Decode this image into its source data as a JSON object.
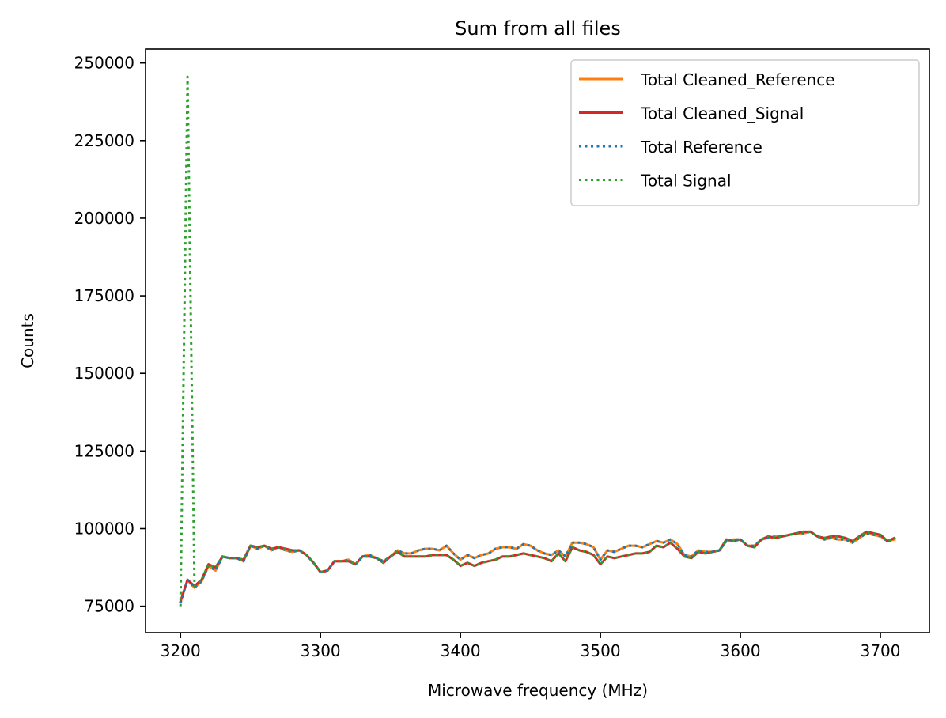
{
  "chart_data": {
    "type": "line",
    "title": "Sum from all files",
    "xlabel": "Microwave frequency (MHz)",
    "ylabel": "Counts",
    "xlim": [
      3175,
      3735
    ],
    "ylim": [
      66500,
      254500
    ],
    "xticks": [
      3200,
      3300,
      3400,
      3500,
      3600,
      3700
    ],
    "yticks": [
      75000,
      100000,
      125000,
      150000,
      175000,
      200000,
      225000,
      250000
    ],
    "grid": false,
    "legend_position": "top-right",
    "x": [
      3200,
      3205,
      3210,
      3215,
      3220,
      3225,
      3230,
      3235,
      3240,
      3245,
      3250,
      3255,
      3260,
      3265,
      3270,
      3275,
      3280,
      3285,
      3290,
      3295,
      3300,
      3305,
      3310,
      3315,
      3320,
      3325,
      3330,
      3335,
      3340,
      3345,
      3350,
      3355,
      3360,
      3365,
      3370,
      3375,
      3380,
      3385,
      3390,
      3395,
      3400,
      3405,
      3410,
      3415,
      3420,
      3425,
      3430,
      3435,
      3440,
      3445,
      3450,
      3455,
      3460,
      3465,
      3470,
      3475,
      3480,
      3485,
      3490,
      3495,
      3500,
      3505,
      3510,
      3515,
      3520,
      3525,
      3530,
      3535,
      3540,
      3545,
      3550,
      3555,
      3560,
      3565,
      3570,
      3575,
      3580,
      3585,
      3590,
      3595,
      3600,
      3605,
      3610,
      3615,
      3620,
      3625,
      3630,
      3635,
      3640,
      3645,
      3650,
      3655,
      3660,
      3665,
      3670,
      3675,
      3680,
      3685,
      3690,
      3695,
      3700,
      3705,
      3710
    ],
    "series": [
      {
        "name": "Total Cleaned_Reference",
        "color": "#ff7f0e",
        "style": "solid",
        "values": [
          76500,
          83500,
          81000,
          83000,
          88000,
          86500,
          91000,
          90500,
          90500,
          89500,
          94500,
          93500,
          94500,
          93000,
          94000,
          93000,
          92500,
          93000,
          91500,
          89000,
          86000,
          86500,
          89500,
          89500,
          90000,
          88500,
          91000,
          91500,
          90500,
          89500,
          91000,
          93000,
          92000,
          92000,
          93000,
          93500,
          93500,
          93000,
          94500,
          92000,
          90000,
          91500,
          90500,
          91500,
          92000,
          93500,
          94000,
          94000,
          93500,
          95000,
          94500,
          93000,
          92000,
          91500,
          93000,
          91000,
          95500,
          95500,
          95000,
          94000,
          90000,
          93000,
          92500,
          93500,
          94500,
          94500,
          94000,
          95000,
          96000,
          95500,
          96500,
          95000,
          91500,
          91000,
          93000,
          92500,
          92500,
          93000,
          96000,
          96500,
          96500,
          94500,
          94500,
          96500,
          97000,
          97500,
          97500,
          98000,
          98500,
          98500,
          99000,
          97500,
          96500,
          97000,
          96500,
          96500,
          95500,
          97000,
          98500,
          98000,
          97500,
          96000,
          96500
        ]
      },
      {
        "name": "Total Cleaned_Signal",
        "color": "#d62728",
        "style": "solid",
        "values": [
          76500,
          83500,
          81500,
          83500,
          88500,
          87500,
          91000,
          90500,
          90500,
          90000,
          94500,
          94000,
          94500,
          93500,
          94000,
          93500,
          93000,
          93000,
          91500,
          89000,
          86000,
          86500,
          89500,
          89500,
          89500,
          88500,
          91000,
          91000,
          90500,
          89000,
          91000,
          92500,
          91000,
          91000,
          91000,
          91000,
          91500,
          91500,
          91500,
          90000,
          88000,
          89000,
          88000,
          89000,
          89500,
          90000,
          91000,
          91000,
          91500,
          92000,
          91500,
          91000,
          90500,
          89500,
          92000,
          89500,
          94000,
          93000,
          92500,
          91500,
          88500,
          91000,
          90500,
          91000,
          91500,
          92000,
          92000,
          92500,
          94500,
          94000,
          95500,
          93500,
          91000,
          90500,
          92500,
          92000,
          92500,
          93000,
          96500,
          96000,
          96500,
          94500,
          94000,
          96500,
          97500,
          97000,
          97500,
          98000,
          98500,
          99000,
          99000,
          97500,
          97000,
          97500,
          97500,
          97000,
          96000,
          97500,
          99000,
          98500,
          98000,
          96000,
          97000
        ]
      },
      {
        "name": "Total Reference",
        "color": "#1f77b4",
        "style": "dotted",
        "values": [
          76000,
          83500,
          81000,
          83000,
          88000,
          86500,
          91000,
          90500,
          90500,
          89500,
          94500,
          93500,
          94500,
          93000,
          94000,
          93000,
          92500,
          93000,
          91500,
          89000,
          86000,
          86500,
          89500,
          89500,
          90000,
          88500,
          91000,
          91500,
          90500,
          89500,
          91000,
          93000,
          92000,
          92000,
          93000,
          93500,
          93500,
          93000,
          94500,
          92000,
          90000,
          91500,
          90500,
          91500,
          92000,
          93500,
          94000,
          94000,
          93500,
          95000,
          94500,
          93000,
          92000,
          91500,
          93000,
          91000,
          95500,
          95500,
          95000,
          94000,
          90000,
          93000,
          92500,
          93500,
          94500,
          94500,
          94000,
          95000,
          96000,
          95500,
          96500,
          95000,
          91500,
          91000,
          93000,
          92500,
          92500,
          93000,
          96000,
          96500,
          96500,
          94500,
          94500,
          96500,
          97000,
          97500,
          97500,
          98000,
          98500,
          98500,
          99000,
          97500,
          96500,
          97000,
          96500,
          96500,
          95500,
          97000,
          98500,
          98000,
          97500,
          96000,
          96500
        ]
      },
      {
        "name": "Total Signal",
        "color": "#2ca02c",
        "style": "dotted",
        "values": [
          75000,
          245500,
          81500,
          83500,
          88500,
          87500,
          91000,
          90500,
          90500,
          90000,
          94500,
          94000,
          94500,
          93500,
          94000,
          93500,
          93000,
          93000,
          91500,
          89000,
          86000,
          86500,
          89500,
          89500,
          89500,
          88500,
          91000,
          91000,
          90500,
          89000,
          91000,
          92500,
          91000,
          91000,
          91000,
          91000,
          91500,
          91500,
          91500,
          90000,
          88000,
          89000,
          88000,
          89000,
          89500,
          90000,
          91000,
          91000,
          91500,
          92000,
          91500,
          91000,
          90500,
          89500,
          92000,
          89500,
          94000,
          93000,
          92500,
          91500,
          88500,
          91000,
          90500,
          91000,
          91500,
          92000,
          92000,
          92500,
          94500,
          94000,
          95500,
          93500,
          91000,
          90500,
          92500,
          92000,
          92500,
          93000,
          96500,
          96000,
          96500,
          94500,
          94000,
          96500,
          97500,
          97000,
          97500,
          98000,
          98500,
          99000,
          99000,
          97500,
          97000,
          97500,
          97500,
          97000,
          96000,
          97500,
          99000,
          98500,
          98000,
          96000,
          97000
        ]
      }
    ]
  }
}
